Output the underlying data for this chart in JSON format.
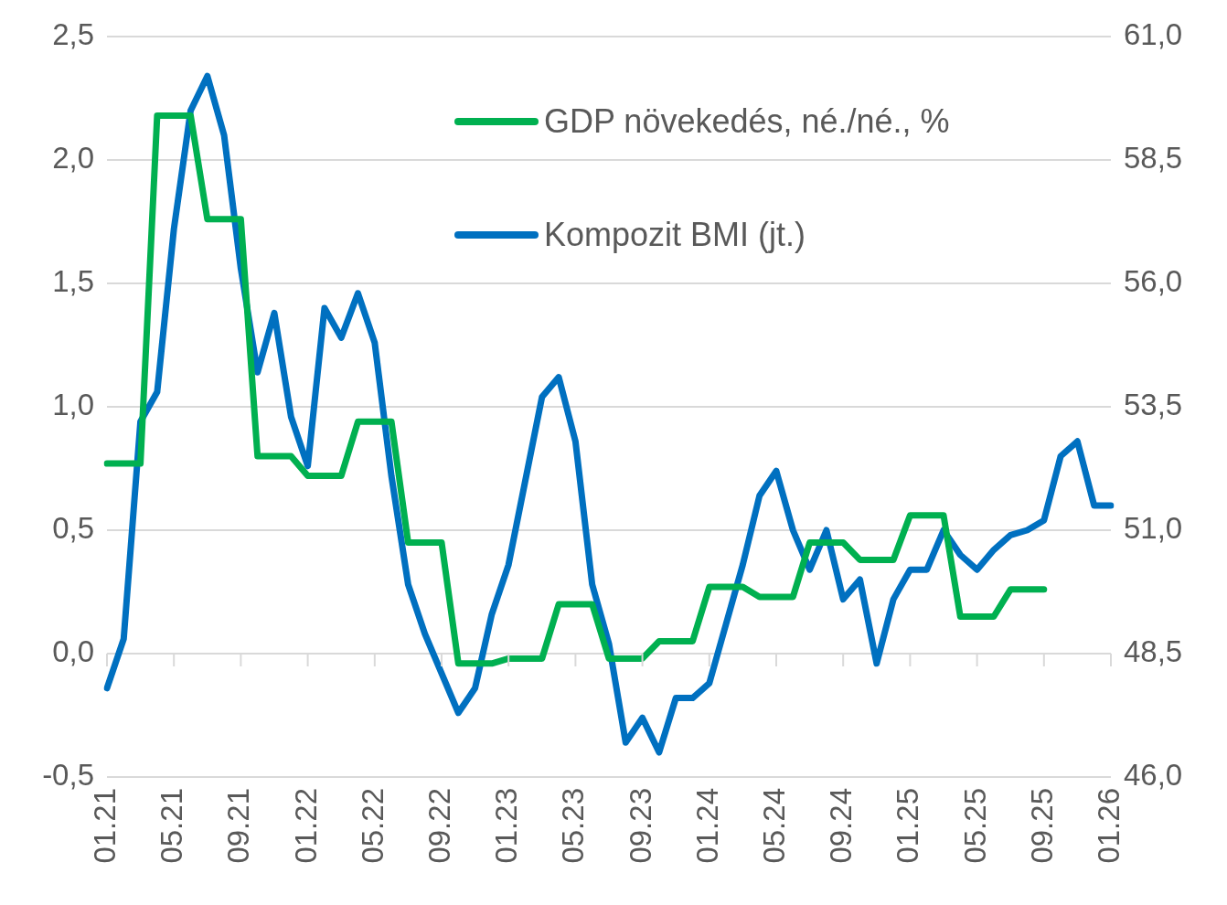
{
  "chart_data": {
    "type": "line",
    "categories": [
      "01.21",
      null,
      null,
      null,
      "05.21",
      null,
      null,
      null,
      "09.21",
      null,
      null,
      null,
      "01.22",
      null,
      null,
      null,
      "05.22",
      null,
      null,
      null,
      "09.22",
      null,
      null,
      null,
      "01.23",
      null,
      null,
      null,
      "05.23",
      null,
      null,
      null,
      "09.23",
      null,
      null,
      null,
      "01.24",
      null,
      null,
      null,
      "05.24",
      null,
      null,
      null,
      "09.24",
      null,
      null,
      null,
      "01.25",
      null,
      null,
      null,
      "05.25",
      null,
      null,
      null,
      "09.25",
      null,
      null,
      null,
      "01.26"
    ],
    "series": [
      {
        "name": "GDP növekedés, né./né., %",
        "color": "#00b050",
        "values": [
          0.77,
          0.77,
          0.77,
          2.18,
          2.18,
          2.18,
          1.76,
          1.76,
          1.76,
          0.8,
          0.8,
          0.8,
          0.72,
          0.72,
          0.72,
          0.94,
          0.94,
          0.94,
          0.45,
          0.45,
          0.45,
          -0.04,
          -0.04,
          -0.04,
          -0.02,
          -0.02,
          -0.02,
          0.2,
          0.2,
          0.2,
          -0.02,
          -0.02,
          -0.02,
          0.05,
          0.05,
          0.05,
          0.27,
          0.27,
          0.27,
          0.23,
          0.23,
          0.23,
          0.45,
          0.45,
          0.45,
          0.38,
          0.38,
          0.38,
          0.56,
          0.56,
          0.56,
          0.15,
          0.15,
          0.15,
          0.26,
          0.26,
          0.26,
          null,
          null,
          null,
          null
        ]
      },
      {
        "name": "Kompozit BMI (jt.)",
        "color": "#0070c0",
        "axis": "y2",
        "values": [
          47.8,
          48.8,
          53.2,
          53.8,
          57.1,
          59.5,
          60.2,
          59.0,
          56.3,
          54.2,
          55.4,
          53.3,
          52.3,
          55.5,
          54.9,
          55.8,
          54.8,
          52.1,
          49.9,
          48.9,
          48.1,
          47.3,
          47.8,
          49.3,
          50.3,
          52.0,
          53.7,
          54.1,
          52.8,
          49.9,
          48.7,
          46.7,
          47.2,
          46.5,
          47.6,
          47.6,
          47.9,
          49.1,
          50.3,
          51.7,
          52.2,
          51.0,
          50.2,
          51.0,
          49.6,
          50.0,
          48.3,
          49.6,
          50.2,
          50.2,
          51.0,
          50.5,
          50.2,
          50.6,
          50.9,
          51.0,
          51.2,
          52.5,
          52.8,
          51.5,
          51.5
        ]
      }
    ],
    "ylim": [
      -0.5,
      2.5
    ],
    "yticks": [
      {
        "value": -0.5,
        "label": "-0,5"
      },
      {
        "value": 0,
        "label": "0,0"
      },
      {
        "value": 0.5,
        "label": "0,5"
      },
      {
        "value": 1,
        "label": "1,0"
      },
      {
        "value": 1.5,
        "label": "1,5"
      },
      {
        "value": 2,
        "label": "2,0"
      },
      {
        "value": 2.5,
        "label": "2,5"
      }
    ],
    "y2lim": [
      46,
      61
    ],
    "y2ticks": [
      {
        "value": 46,
        "label": "46,0"
      },
      {
        "value": 48.5,
        "label": "48,5"
      },
      {
        "value": 51,
        "label": "51,0"
      },
      {
        "value": 53.5,
        "label": "53,5"
      },
      {
        "value": 56,
        "label": "56,0"
      },
      {
        "value": 58.5,
        "label": "58,5"
      },
      {
        "value": 61,
        "label": "61,0"
      }
    ],
    "grid": "y",
    "legend": "top",
    "marker": "none",
    "line_style": "solid"
  }
}
